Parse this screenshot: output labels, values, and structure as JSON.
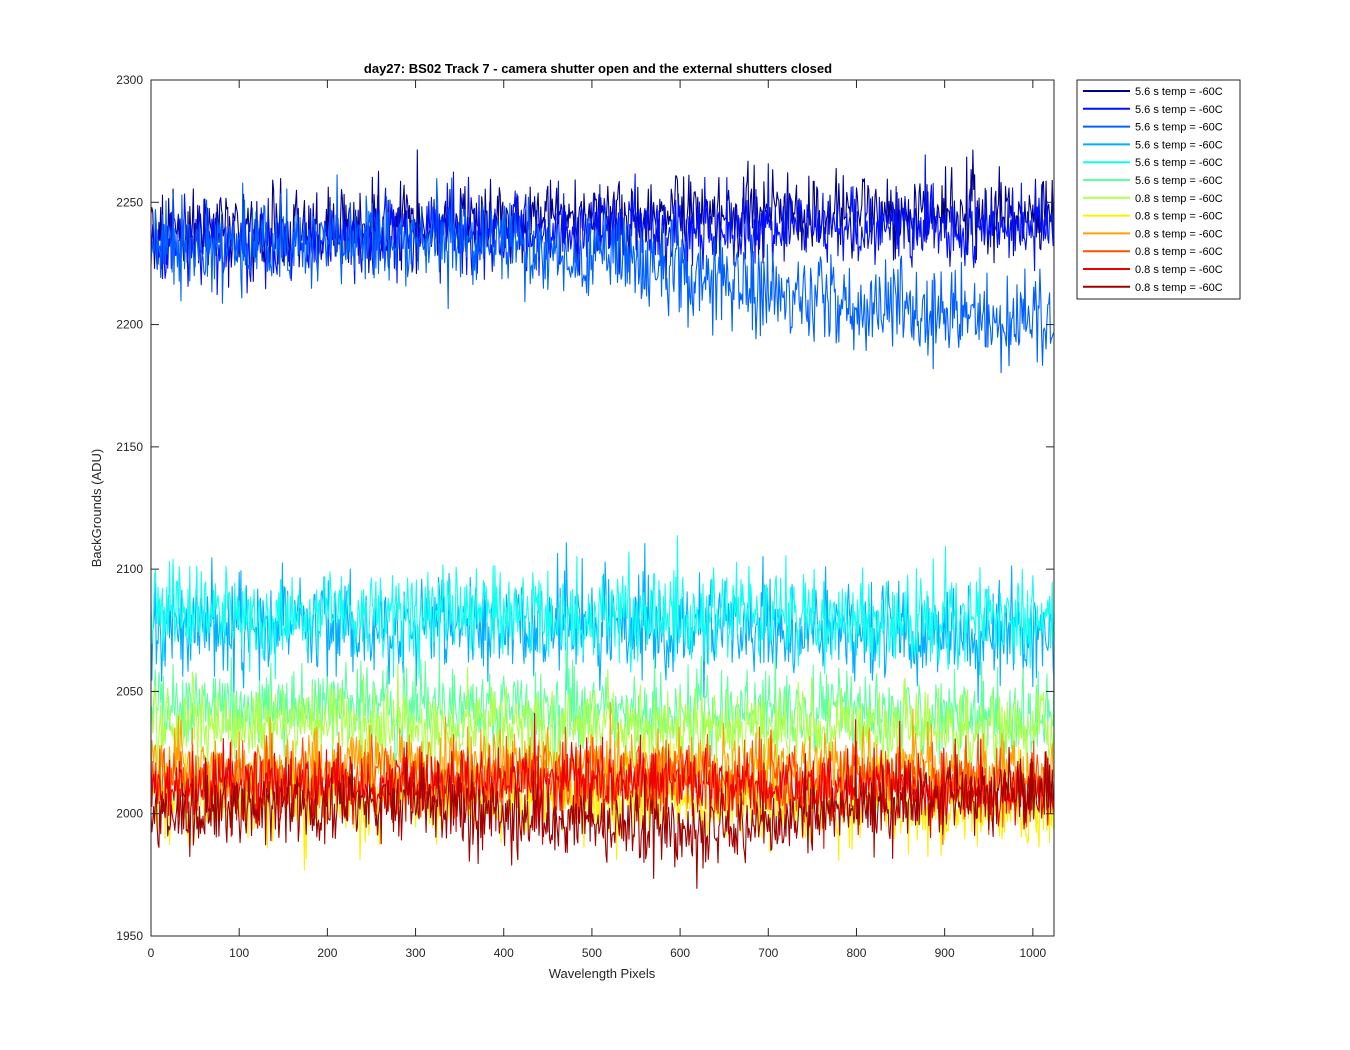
{
  "chart_data": {
    "type": "line",
    "title": "day27: BS02  Track 7 - camera shutter open and the external shutters closed",
    "xlabel": "Wavelength Pixels",
    "ylabel": "BackGrounds (ADU)",
    "xlim": [
      0,
      1024
    ],
    "ylim": [
      1950,
      2300
    ],
    "xticks": [
      0,
      100,
      200,
      300,
      400,
      500,
      600,
      700,
      800,
      900,
      1000
    ],
    "yticks": [
      1950,
      2000,
      2050,
      2100,
      2150,
      2200,
      2250,
      2300
    ],
    "grid": false,
    "legend_position": "outside-top-right",
    "series": [
      {
        "name": "5.6 s temp = -60C",
        "color": "#00008f",
        "x": [
          0,
          300,
          600,
          900,
          1024
        ],
        "y": [
          2238,
          2240,
          2245,
          2245,
          2246
        ],
        "noise": 11
      },
      {
        "name": "5.6 s temp = -60C",
        "color": "#0010ff",
        "x": [
          0,
          300,
          600,
          900,
          1024
        ],
        "y": [
          2232,
          2236,
          2240,
          2240,
          2240
        ],
        "noise": 11
      },
      {
        "name": "5.6 s temp = -60C",
        "color": "#0060ff",
        "x": [
          0,
          300,
          550,
          700,
          900,
          1024
        ],
        "y": [
          2232,
          2234,
          2228,
          2212,
          2204,
          2201
        ],
        "noise": 12
      },
      {
        "name": "5.6 s temp = -60C",
        "color": "#00b0ff",
        "x": [
          0,
          300,
          600,
          900,
          1024
        ],
        "y": [
          2078,
          2076,
          2076,
          2074,
          2075
        ],
        "noise": 13
      },
      {
        "name": "5.6 s temp = -60C",
        "color": "#10ffef",
        "x": [
          0,
          300,
          600,
          900,
          1024
        ],
        "y": [
          2083,
          2081,
          2081,
          2079,
          2080
        ],
        "noise": 13
      },
      {
        "name": "5.6 s temp = -60C",
        "color": "#60ff9f",
        "x": [
          0,
          300,
          600,
          900,
          1024
        ],
        "y": [
          2045,
          2043,
          2043,
          2040,
          2040
        ],
        "noise": 11
      },
      {
        "name": "0.8 s temp = -60C",
        "color": "#b0ff4f",
        "x": [
          0,
          300,
          600,
          900,
          1024
        ],
        "y": [
          2036,
          2036,
          2035,
          2034,
          2035
        ],
        "noise": 11
      },
      {
        "name": "0.8 s temp = -60C",
        "color": "#ffef00",
        "x": [
          0,
          300,
          600,
          900,
          1024
        ],
        "y": [
          2005,
          2007,
          2007,
          2003,
          2002
        ],
        "noise": 11
      },
      {
        "name": "0.8 s temp = -60C",
        "color": "#ffa000",
        "x": [
          0,
          300,
          600,
          900,
          1024
        ],
        "y": [
          2018,
          2020,
          2020,
          2018,
          2018
        ],
        "noise": 10
      },
      {
        "name": "0.8 s temp = -60C",
        "color": "#ff5000",
        "x": [
          0,
          300,
          600,
          900,
          1024
        ],
        "y": [
          2012,
          2014,
          2014,
          2012,
          2012
        ],
        "noise": 10
      },
      {
        "name": "0.8 s temp = -60C",
        "color": "#ef0000",
        "x": [
          0,
          300,
          600,
          900,
          1024
        ],
        "y": [
          2010,
          2012,
          2013,
          2010,
          2009
        ],
        "noise": 10
      },
      {
        "name": "0.8 s temp = -60C",
        "color": "#9f0000",
        "x": [
          0,
          300,
          600,
          900,
          1024
        ],
        "y": [
          1999,
          2004,
          1992,
          2006,
          2008
        ],
        "noise": 10
      }
    ]
  }
}
